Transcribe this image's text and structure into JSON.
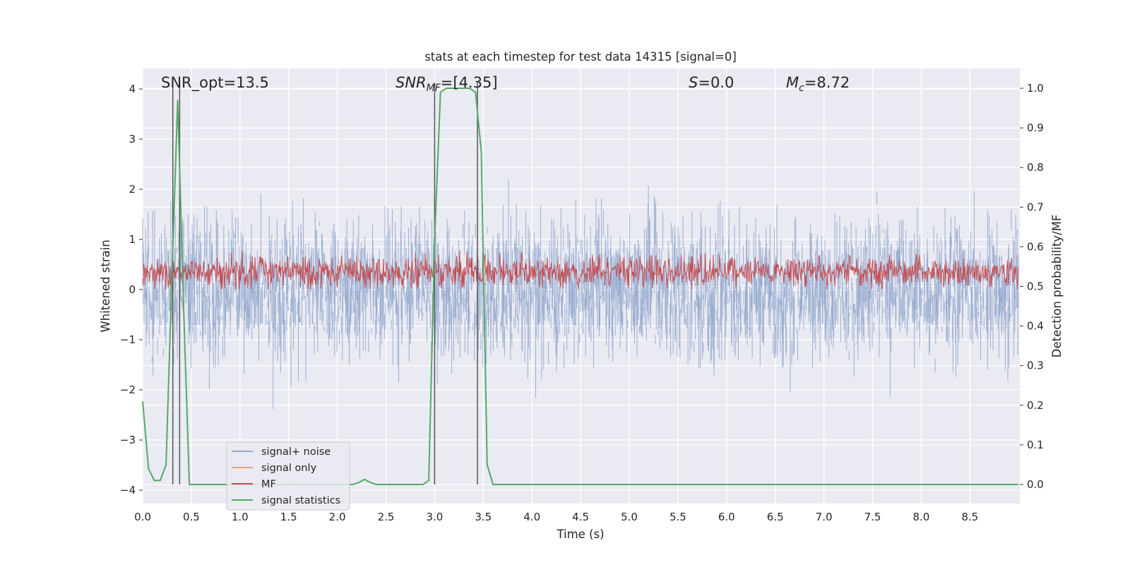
{
  "chart_data": {
    "type": "line",
    "title": "stats at each timestep for test data 14315 [signal=0]",
    "xlabel": "Time (s)",
    "ylabel_left": "Whitened strain",
    "ylabel_right": "Detection probability/MF",
    "xlim": [
      0.0,
      9.0
    ],
    "ylim_left": [
      -4.25,
      4.35
    ],
    "ylim_right": [
      -0.05,
      1.03
    ],
    "x_ticks": [
      "0.0",
      "0.5",
      "1.0",
      "1.5",
      "2.0",
      "2.5",
      "3.0",
      "3.5",
      "4.0",
      "4.5",
      "5.0",
      "5.5",
      "6.0",
      "6.5",
      "7.0",
      "7.5",
      "8.0",
      "8.5"
    ],
    "y_ticks_left": [
      "4",
      "3",
      "2",
      "1",
      "0",
      "−1",
      "−2",
      "−3",
      "−4"
    ],
    "y_ticks_right": [
      "1.0",
      "0.9",
      "0.8",
      "0.7",
      "0.6",
      "0.5",
      "0.4",
      "0.3",
      "0.2",
      "0.1",
      "0.0"
    ],
    "grid": true,
    "legend_position": "lower-left",
    "annotations": [
      {
        "text": "SNR_opt=13.5",
        "x_at": 0.2
      },
      {
        "text": "SNR",
        "sub": "MF",
        "suffix": "=[4.35]",
        "italic": true,
        "x_at": 2.6
      },
      {
        "text": "S",
        "suffix": "=0.0",
        "italic": true,
        "x_at": 5.6
      },
      {
        "text": "M",
        "sub": "c",
        "suffix": "=8.72",
        "italic": true,
        "x_at": 6.6
      }
    ],
    "vertical_markers_time": [
      0.31,
      0.38,
      3.0,
      3.44
    ],
    "colors": {
      "plot_bg": "#eaeaf2",
      "grid": "#ffffff",
      "noise": "#4c72b0",
      "signal_only": "#dd8452",
      "mf": "#c44e52",
      "stats": "#55a868",
      "marker": "#555555"
    },
    "series": [
      {
        "name": "signal+ noise",
        "role": "noise",
        "axis": "left",
        "x_range": [
          0.0,
          9.0
        ],
        "y_envelope": [
          -3.3,
          4.0
        ],
        "typical_band": [
          -1.8,
          1.8
        ]
      },
      {
        "name": "signal only",
        "role": "signal",
        "axis": "left",
        "points": []
      },
      {
        "name": "MF",
        "role": "mf",
        "axis": "left",
        "x_range": [
          0.0,
          9.0
        ],
        "band": [
          0.0,
          0.85
        ]
      },
      {
        "name": "signal statistics",
        "role": "stats",
        "axis": "right",
        "x": [
          0.0,
          0.06,
          0.12,
          0.18,
          0.24,
          0.3,
          0.36,
          0.42,
          0.48,
          0.54,
          0.6,
          0.66,
          0.72,
          0.78,
          0.84,
          0.9,
          0.96,
          1.02,
          1.08,
          1.14,
          1.2,
          1.26,
          1.32,
          1.38,
          1.44,
          1.5,
          1.56,
          1.62,
          1.68,
          1.74,
          1.8,
          1.86,
          1.92,
          1.98,
          2.04,
          2.1,
          2.16,
          2.22,
          2.28,
          2.34,
          2.4,
          2.46,
          2.52,
          2.58,
          2.64,
          2.7,
          2.76,
          2.82,
          2.88,
          2.94,
          3.0,
          3.06,
          3.12,
          3.18,
          3.24,
          3.3,
          3.36,
          3.42,
          3.48,
          3.54,
          3.6,
          3.66,
          3.72,
          3.78,
          3.84,
          3.9,
          3.96,
          4.02,
          4.08,
          4.14,
          4.2,
          4.26,
          4.32,
          4.38,
          4.44,
          4.5,
          4.56,
          4.62,
          4.68,
          4.74,
          4.8,
          4.86,
          4.92,
          4.98,
          5.04,
          5.1,
          5.16,
          5.22,
          5.28,
          5.34,
          5.4,
          5.46,
          5.52,
          5.58,
          5.64,
          5.7,
          5.76,
          5.82,
          5.88,
          5.94,
          6.0,
          6.06,
          6.12,
          6.18,
          6.24,
          6.3,
          6.36,
          6.42,
          6.48,
          6.54,
          6.6,
          6.66,
          6.72,
          6.78,
          6.84,
          6.9,
          6.96,
          7.02,
          7.08,
          7.14,
          7.2,
          7.26,
          7.32,
          7.38,
          7.44,
          7.5,
          7.56,
          7.62,
          7.68,
          7.74,
          7.8,
          7.86,
          7.92,
          7.98,
          8.04,
          8.1,
          8.16,
          8.22,
          8.28,
          8.34,
          8.4,
          8.46,
          8.52,
          8.58,
          8.64,
          8.7,
          8.76,
          8.82,
          8.88,
          8.94,
          9.0
        ],
        "y": [
          0.21,
          0.04,
          0.01,
          0.01,
          0.05,
          0.52,
          0.97,
          0.45,
          0.0,
          0.0,
          0.0,
          0.0,
          0.0,
          0.0,
          0.0,
          0.0,
          0.0,
          0.0,
          0.0,
          0.0,
          0.0,
          0.0,
          0.0,
          0.0,
          0.0,
          0.0,
          0.0,
          0.0,
          0.0,
          0.0,
          0.0,
          0.0,
          0.0,
          0.0,
          0.0,
          0.0,
          0.0,
          0.005,
          0.013,
          0.005,
          0.0,
          0.0,
          0.0,
          0.0,
          0.0,
          0.0,
          0.0,
          0.0,
          0.0,
          0.01,
          0.62,
          0.99,
          1.0,
          1.0,
          1.0,
          1.0,
          1.0,
          0.99,
          0.84,
          0.05,
          0.0,
          0.0,
          0.0,
          0.0,
          0.0,
          0.0,
          0.0,
          0.0,
          0.0,
          0.0,
          0.0,
          0.0,
          0.0,
          0.0,
          0.0,
          0.0,
          0.0,
          0.0,
          0.0,
          0.0,
          0.0,
          0.0,
          0.0,
          0.0,
          0.0,
          0.0,
          0.0,
          0.0,
          0.0,
          0.0,
          0.0,
          0.0,
          0.0,
          0.0,
          0.0,
          0.0,
          0.0,
          0.0,
          0.0,
          0.0,
          0.0,
          0.0,
          0.0,
          0.0,
          0.0,
          0.0,
          0.0,
          0.0,
          0.0,
          0.0,
          0.0,
          0.0,
          0.0,
          0.0,
          0.0,
          0.0,
          0.0,
          0.0,
          0.0,
          0.0,
          0.0,
          0.0,
          0.0,
          0.0,
          0.0,
          0.0,
          0.0,
          0.0,
          0.0,
          0.0,
          0.0,
          0.0,
          0.0,
          0.0,
          0.0,
          0.0,
          0.0,
          0.0,
          0.0,
          0.0,
          0.0,
          0.0,
          0.0,
          0.0,
          0.0,
          0.0,
          0.0,
          0.0,
          0.0,
          0.0,
          0.0
        ]
      }
    ]
  }
}
